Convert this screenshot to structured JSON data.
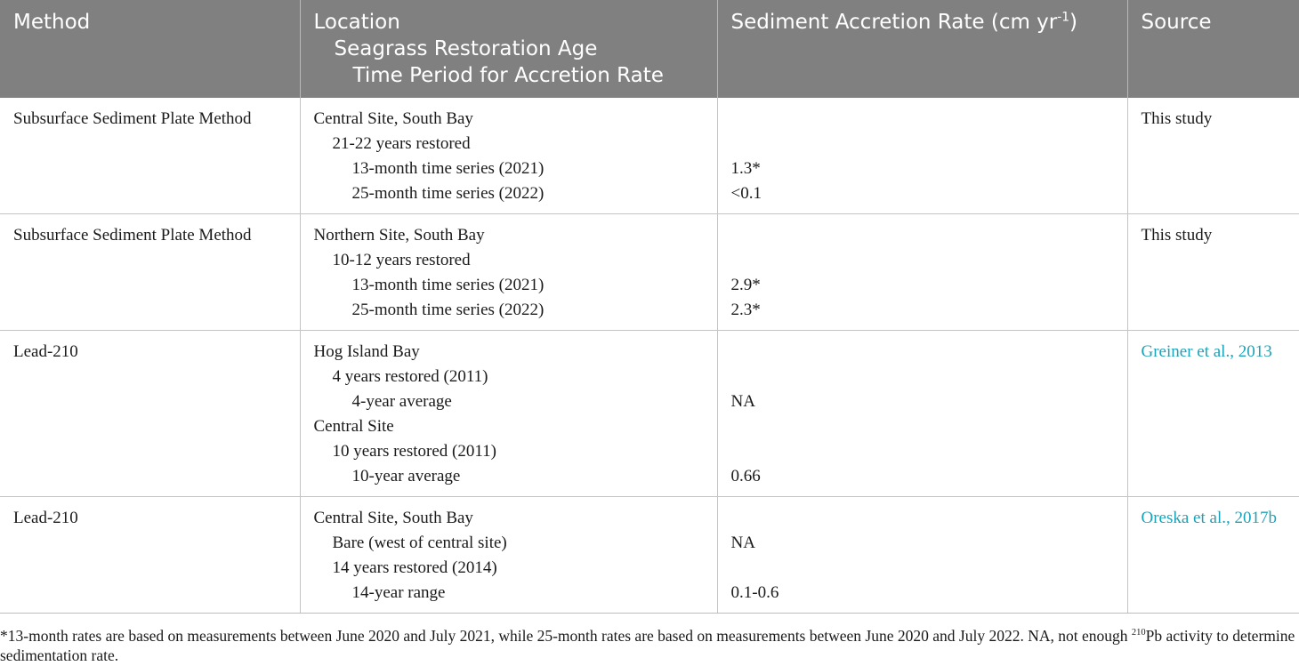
{
  "header": {
    "method": "Method",
    "location_lines": [
      "Location",
      "Seagrass Restoration Age",
      "Time Period for Accretion Rate"
    ],
    "rate_label": "Sediment Accretion Rate (cm yr",
    "rate_sup": "-1",
    "rate_close": ")",
    "source": "Source"
  },
  "rows": [
    {
      "method": "Subsurface Sediment Plate Method",
      "lines": [
        {
          "text": "Central Site, South Bay",
          "rate": ""
        },
        {
          "text": "21-22 years restored",
          "rate": ""
        },
        {
          "text": "13-month time series (2021)",
          "rate": "1.3*"
        },
        {
          "text": "25-month time series (2022)",
          "rate": "<0.1"
        }
      ],
      "source": "This study"
    },
    {
      "method": "Subsurface Sediment Plate Method",
      "lines": [
        {
          "text": "Northern Site, South Bay",
          "rate": ""
        },
        {
          "text": "10-12 years restored",
          "rate": ""
        },
        {
          "text": "13-month time series (2021)",
          "rate": "2.9*"
        },
        {
          "text": "25-month time series (2022)",
          "rate": "2.3*"
        }
      ],
      "source": "This study"
    },
    {
      "method": "Lead-210",
      "lines": [
        {
          "text": "Hog Island Bay",
          "rate": ""
        },
        {
          "text": "4 years restored (2011)",
          "rate": ""
        },
        {
          "text": "4-year average",
          "rate": "NA"
        },
        {
          "text": "Central Site",
          "rate": ""
        },
        {
          "text": "10 years restored (2011)",
          "rate": ""
        },
        {
          "text": "10-year average",
          "rate": "0.66"
        }
      ],
      "source": "Greiner et al., 2013"
    },
    {
      "method": "Lead-210",
      "lines": [
        {
          "text": "Central Site, South Bay",
          "rate": ""
        },
        {
          "text": "Bare (west of central site)",
          "rate": "NA"
        },
        {
          "text": "14 years restored (2014)",
          "rate": ""
        },
        {
          "text": "14-year range",
          "rate": "0.1-0.6"
        }
      ],
      "source": "Oreska et al., 2017b"
    }
  ],
  "footnote": {
    "part1": "*13-month rates are based on measurements between June 2020 and July 2021, while 25-month rates are based on measurements between June 2020 and July 2022. NA, not enough ",
    "sup": "210",
    "part2": "Pb activity to determine sedimentation rate."
  },
  "colors": {
    "header_bg": "#808080",
    "link": "#1aa3b8"
  }
}
